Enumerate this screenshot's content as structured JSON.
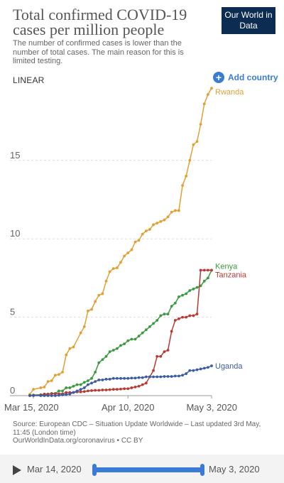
{
  "header": {
    "title": "Total confirmed COVID-19 cases per million people",
    "subtitle": "The number of confirmed cases is lower than the number of total cases. The main reason for this is limited testing.",
    "logo": "Our World in Data"
  },
  "controls": {
    "scale_label": "LINEAR",
    "add_country_label": "Add country"
  },
  "source": {
    "line1": "Source: European CDC – Situation Update Worldwide – Last updated 3rd May, 11:45 (London time)",
    "line2": "OurWorldInData.org/coronavirus • CC BY"
  },
  "timeline": {
    "start_label": "Mar 14, 2020",
    "end_label": "May 3, 2020"
  },
  "chart_data": {
    "type": "line",
    "title": "Total confirmed COVID-19 cases per million people",
    "x_start": "2020-03-14",
    "x_end": "2020-05-03",
    "x_ticks": [
      {
        "date": "2020-03-15",
        "label": "Mar 15, 2020"
      },
      {
        "date": "2020-04-10",
        "label": "Apr 10, 2020"
      },
      {
        "date": "2020-05-03",
        "label": "May 3, 2020"
      }
    ],
    "y_ticks": [
      0,
      5,
      10,
      15
    ],
    "ylim": [
      0,
      19.7
    ],
    "grid": true,
    "series": [
      {
        "name": "Rwanda",
        "color": "#e1a033",
        "dates": [
          "2020-03-14",
          "2020-03-15",
          "2020-03-17",
          "2020-03-18",
          "2020-03-19",
          "2020-03-20",
          "2020-03-21",
          "2020-03-22",
          "2020-03-23",
          "2020-03-24",
          "2020-03-25",
          "2020-03-26",
          "2020-03-28",
          "2020-03-29",
          "2020-03-30",
          "2020-03-31",
          "2020-04-01",
          "2020-04-02",
          "2020-04-03",
          "2020-04-04",
          "2020-04-05",
          "2020-04-06",
          "2020-04-07",
          "2020-04-08",
          "2020-04-09",
          "2020-04-10",
          "2020-04-11",
          "2020-04-12",
          "2020-04-13",
          "2020-04-14",
          "2020-04-15",
          "2020-04-16",
          "2020-04-17",
          "2020-04-18",
          "2020-04-19",
          "2020-04-20",
          "2020-04-21",
          "2020-04-22",
          "2020-04-23",
          "2020-04-24",
          "2020-04-25",
          "2020-04-26",
          "2020-04-27",
          "2020-04-28",
          "2020-04-29",
          "2020-04-30",
          "2020-05-01",
          "2020-05-02",
          "2020-05-03"
        ],
        "values": [
          0.08,
          0.4,
          0.5,
          0.55,
          0.9,
          0.95,
          1.3,
          1.35,
          1.5,
          2.6,
          3.0,
          3.1,
          4.0,
          4.4,
          5.4,
          5.5,
          6.0,
          6.4,
          6.5,
          7.3,
          7.9,
          8.1,
          8.15,
          8.5,
          8.9,
          9.1,
          9.3,
          9.8,
          9.9,
          10.3,
          10.5,
          10.6,
          10.9,
          11.0,
          11.1,
          11.2,
          11.4,
          11.7,
          11.8,
          11.8,
          13.4,
          14.0,
          15.0,
          16.0,
          16.2,
          17.3,
          18.6,
          19.2,
          19.6
        ]
      },
      {
        "name": "Kenya",
        "color": "#3c9a3e",
        "dates": [
          "2020-03-14",
          "2020-03-15",
          "2020-03-17",
          "2020-03-18",
          "2020-03-19",
          "2020-03-20",
          "2020-03-21",
          "2020-03-22",
          "2020-03-23",
          "2020-03-24",
          "2020-03-25",
          "2020-03-26",
          "2020-03-27",
          "2020-03-28",
          "2020-03-29",
          "2020-03-30",
          "2020-03-31",
          "2020-04-01",
          "2020-04-02",
          "2020-04-03",
          "2020-04-04",
          "2020-04-05",
          "2020-04-06",
          "2020-04-07",
          "2020-04-08",
          "2020-04-09",
          "2020-04-10",
          "2020-04-11",
          "2020-04-12",
          "2020-04-13",
          "2020-04-14",
          "2020-04-15",
          "2020-04-16",
          "2020-04-17",
          "2020-04-18",
          "2020-04-19",
          "2020-04-20",
          "2020-04-21",
          "2020-04-22",
          "2020-04-23",
          "2020-04-24",
          "2020-04-25",
          "2020-04-26",
          "2020-04-27",
          "2020-04-28",
          "2020-04-29",
          "2020-04-30",
          "2020-05-01",
          "2020-05-02",
          "2020-05-03"
        ],
        "values": [
          0.02,
          0.04,
          0.06,
          0.06,
          0.08,
          0.14,
          0.14,
          0.3,
          0.3,
          0.5,
          0.5,
          0.6,
          0.7,
          0.7,
          0.85,
          0.95,
          1.1,
          1.5,
          2.1,
          2.3,
          2.5,
          2.8,
          2.9,
          3.0,
          3.2,
          3.3,
          3.5,
          3.6,
          3.6,
          3.8,
          4.0,
          4.2,
          4.4,
          4.6,
          4.8,
          5.1,
          5.2,
          5.2,
          5.7,
          5.9,
          6.3,
          6.4,
          6.5,
          6.7,
          6.8,
          6.9,
          7.0,
          7.3,
          7.5,
          8.0
        ]
      },
      {
        "name": "Tanzania",
        "color": "#b93a32",
        "dates": [
          "2020-03-14",
          "2020-03-15",
          "2020-03-17",
          "2020-03-18",
          "2020-03-19",
          "2020-03-20",
          "2020-03-21",
          "2020-03-22",
          "2020-03-23",
          "2020-03-24",
          "2020-03-25",
          "2020-03-26",
          "2020-03-27",
          "2020-03-28",
          "2020-03-29",
          "2020-03-30",
          "2020-03-31",
          "2020-04-01",
          "2020-04-02",
          "2020-04-03",
          "2020-04-04",
          "2020-04-05",
          "2020-04-06",
          "2020-04-07",
          "2020-04-08",
          "2020-04-09",
          "2020-04-10",
          "2020-04-11",
          "2020-04-12",
          "2020-04-13",
          "2020-04-14",
          "2020-04-15",
          "2020-04-16",
          "2020-04-17",
          "2020-04-18",
          "2020-04-19",
          "2020-04-20",
          "2020-04-21",
          "2020-04-22",
          "2020-04-23",
          "2020-04-24",
          "2020-04-25",
          "2020-04-26",
          "2020-04-27",
          "2020-04-28",
          "2020-04-29",
          "2020-04-30",
          "2020-05-01",
          "2020-05-02",
          "2020-05-03"
        ],
        "values": [
          0.0,
          0.02,
          0.03,
          0.1,
          0.1,
          0.12,
          0.12,
          0.12,
          0.12,
          0.2,
          0.2,
          0.2,
          0.24,
          0.24,
          0.26,
          0.3,
          0.32,
          0.34,
          0.34,
          0.36,
          0.36,
          0.38,
          0.4,
          0.4,
          0.42,
          0.44,
          0.44,
          0.5,
          0.55,
          0.6,
          0.7,
          0.8,
          1.2,
          1.6,
          2.5,
          2.5,
          2.8,
          2.9,
          4.1,
          4.8,
          4.9,
          5.0,
          5.0,
          5.1,
          5.1,
          5.2,
          8.0,
          8.0,
          8.0,
          8.0
        ]
      },
      {
        "name": "Uganda",
        "color": "#3b5ba5",
        "dates": [
          "2020-03-14",
          "2020-03-15",
          "2020-03-17",
          "2020-03-18",
          "2020-03-19",
          "2020-03-20",
          "2020-03-21",
          "2020-03-22",
          "2020-03-23",
          "2020-03-24",
          "2020-03-25",
          "2020-03-26",
          "2020-03-27",
          "2020-03-28",
          "2020-03-29",
          "2020-03-30",
          "2020-03-31",
          "2020-04-01",
          "2020-04-02",
          "2020-04-03",
          "2020-04-04",
          "2020-04-05",
          "2020-04-06",
          "2020-04-07",
          "2020-04-08",
          "2020-04-09",
          "2020-04-10",
          "2020-04-11",
          "2020-04-12",
          "2020-04-13",
          "2020-04-14",
          "2020-04-15",
          "2020-04-16",
          "2020-04-17",
          "2020-04-18",
          "2020-04-19",
          "2020-04-20",
          "2020-04-21",
          "2020-04-22",
          "2020-04-23",
          "2020-04-24",
          "2020-04-25",
          "2020-04-26",
          "2020-04-27",
          "2020-04-28",
          "2020-04-29",
          "2020-04-30",
          "2020-05-01",
          "2020-05-02",
          "2020-05-03"
        ],
        "values": [
          0.0,
          0.0,
          0.0,
          0.0,
          0.0,
          0.0,
          0.0,
          0.02,
          0.05,
          0.07,
          0.1,
          0.2,
          0.3,
          0.4,
          0.5,
          0.7,
          0.8,
          0.9,
          1.0,
          1.0,
          1.05,
          1.05,
          1.1,
          1.1,
          1.1,
          1.1,
          1.1,
          1.12,
          1.12,
          1.15,
          1.15,
          1.2,
          1.2,
          1.2,
          1.2,
          1.2,
          1.22,
          1.22,
          1.22,
          1.25,
          1.25,
          1.3,
          1.4,
          1.6,
          1.6,
          1.65,
          1.7,
          1.75,
          1.8,
          1.9
        ]
      }
    ]
  }
}
